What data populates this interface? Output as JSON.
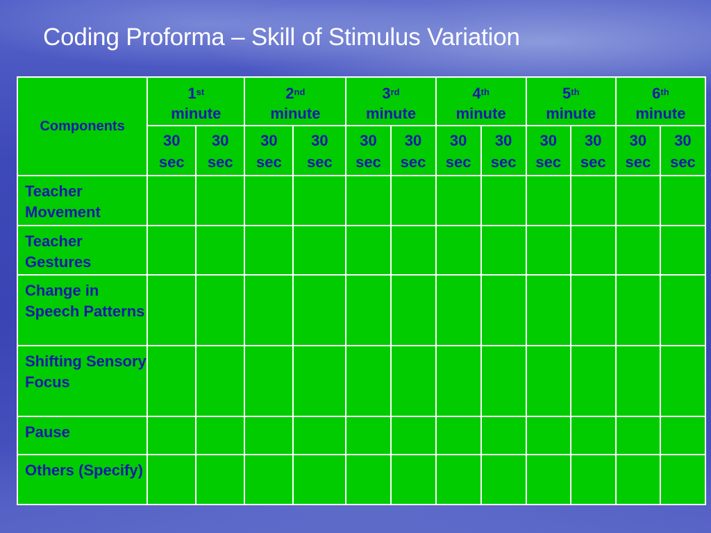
{
  "slide": {
    "title": "Coding Proforma – Skill of Stimulus Variation"
  },
  "table": {
    "components_header": "Components",
    "minutes": [
      {
        "num": "1",
        "suffix": "st",
        "word": "minute"
      },
      {
        "num": "2",
        "suffix": "nd",
        "word": "minute"
      },
      {
        "num": "3",
        "suffix": "rd",
        "word": "minute"
      },
      {
        "num": "4",
        "suffix": "th",
        "word": "minute"
      },
      {
        "num": "5",
        "suffix": "th",
        "word": "minute"
      },
      {
        "num": "6",
        "suffix": "th",
        "word": "minute"
      }
    ],
    "sec_top": "30",
    "sec_bottom": "sec",
    "rows": [
      {
        "label": "Teacher Movement"
      },
      {
        "label": "Teacher Gestures"
      },
      {
        "label": "Change in Speech Patterns"
      },
      {
        "label": "Shifting Sensory Focus"
      },
      {
        "label": "Pause"
      },
      {
        "label": "Others (Specify)"
      }
    ]
  },
  "colors": {
    "table_fill": "#00cc00",
    "grid_lines": "#ffffff",
    "table_text": "#1a1aa8",
    "title_text": "#ffffff",
    "background": "#3e49b8"
  }
}
